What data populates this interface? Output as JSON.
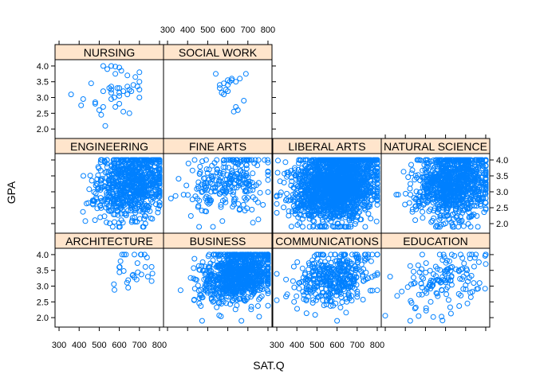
{
  "chart_data": {
    "type": "scatter",
    "xlabel": "SAT.Q",
    "ylabel": "GPA",
    "xlim": [
      280,
      820
    ],
    "ylim": [
      1.7,
      4.2
    ],
    "x_ticks": [
      300,
      400,
      500,
      600,
      700,
      800
    ],
    "y_ticks": [
      2.0,
      2.5,
      3.0,
      3.5,
      4.0
    ],
    "x_tick_labels": [
      "300",
      "400",
      "500",
      "600",
      "700",
      "800"
    ],
    "y_tick_labels": [
      "2.0",
      "2.5",
      "3.0",
      "3.5",
      "4.0"
    ],
    "point_color": "#0080ff",
    "strip_color": "#ffe5cc",
    "panels": [
      {
        "name": "NURSING",
        "row": 0,
        "col": 0,
        "n": 45,
        "points": [
          [
            520,
            4.0
          ],
          [
            560,
            4.0
          ],
          [
            580,
            3.98
          ],
          [
            600,
            3.95
          ],
          [
            540,
            3.9
          ],
          [
            610,
            3.85
          ],
          [
            640,
            3.7
          ],
          [
            700,
            3.8
          ],
          [
            580,
            3.75
          ],
          [
            680,
            3.65
          ],
          [
            460,
            3.45
          ],
          [
            560,
            3.35
          ],
          [
            600,
            3.3
          ],
          [
            640,
            3.35
          ],
          [
            670,
            3.4
          ],
          [
            560,
            3.25
          ],
          [
            520,
            3.2
          ],
          [
            600,
            3.15
          ],
          [
            660,
            3.2
          ],
          [
            700,
            3.25
          ],
          [
            360,
            3.1
          ],
          [
            560,
            3.15
          ],
          [
            600,
            3.05
          ],
          [
            640,
            3.1
          ],
          [
            700,
            3.0
          ],
          [
            420,
            2.95
          ],
          [
            480,
            2.85
          ],
          [
            520,
            2.7
          ],
          [
            560,
            2.95
          ],
          [
            600,
            2.8
          ],
          [
            410,
            2.75
          ],
          [
            500,
            2.6
          ],
          [
            580,
            2.7
          ],
          [
            620,
            2.55
          ],
          [
            510,
            2.45
          ],
          [
            480,
            2.8
          ],
          [
            550,
            3.3
          ],
          [
            590,
            3.3
          ],
          [
            650,
            3.25
          ],
          [
            690,
            3.35
          ],
          [
            530,
            2.1
          ],
          [
            650,
            2.5
          ],
          [
            620,
            3.2
          ],
          [
            700,
            3.5
          ],
          [
            575,
            3.0
          ]
        ]
      },
      {
        "name": "SOCIAL WORK",
        "row": 0,
        "col": 1,
        "n": 20,
        "points": [
          [
            540,
            3.75
          ],
          [
            600,
            3.55
          ],
          [
            690,
            3.75
          ],
          [
            580,
            3.45
          ],
          [
            620,
            3.55
          ],
          [
            640,
            3.5
          ],
          [
            560,
            3.3
          ],
          [
            590,
            3.25
          ],
          [
            570,
            3.15
          ],
          [
            580,
            3.1
          ],
          [
            600,
            3.2
          ],
          [
            680,
            2.9
          ],
          [
            640,
            2.7
          ],
          [
            650,
            2.6
          ],
          [
            630,
            2.55
          ],
          [
            610,
            3.5
          ],
          [
            660,
            3.6
          ],
          [
            560,
            3.4
          ],
          [
            600,
            3.4
          ],
          [
            620,
            3.6
          ]
        ]
      },
      {
        "name": "ENGINEERING",
        "row": 1,
        "col": 0,
        "n": 800,
        "cx": 660,
        "sx": 85,
        "cy": 3.3,
        "sy": 0.55,
        "seed": 11
      },
      {
        "name": "FINE ARTS",
        "row": 1,
        "col": 1,
        "n": 250,
        "cx": 600,
        "sx": 95,
        "cy": 3.3,
        "sy": 0.5,
        "seed": 22
      },
      {
        "name": "LIBERAL ARTS",
        "row": 1,
        "col": 2,
        "n": 2000,
        "cx": 600,
        "sx": 100,
        "cy": 3.25,
        "sy": 0.55,
        "seed": 33
      },
      {
        "name": "NATURAL SCIENCE",
        "row": 1,
        "col": 3,
        "n": 1000,
        "cx": 640,
        "sx": 95,
        "cy": 3.25,
        "sy": 0.55,
        "seed": 44
      },
      {
        "name": "ARCHITECTURE",
        "row": 2,
        "col": 0,
        "n": 30,
        "cx": 680,
        "sx": 70,
        "cy": 3.5,
        "sy": 0.35,
        "seed": 55
      },
      {
        "name": "BUSINESS",
        "row": 2,
        "col": 1,
        "n": 900,
        "cx": 650,
        "sx": 90,
        "cy": 3.35,
        "sy": 0.45,
        "seed": 66
      },
      {
        "name": "COMMUNICATIONS",
        "row": 2,
        "col": 2,
        "n": 400,
        "cx": 580,
        "sx": 100,
        "cy": 3.25,
        "sy": 0.45,
        "seed": 77
      },
      {
        "name": "EDUCATION",
        "row": 2,
        "col": 3,
        "n": 150,
        "cx": 600,
        "sx": 95,
        "cy": 3.15,
        "sy": 0.5,
        "seed": 88
      }
    ]
  }
}
